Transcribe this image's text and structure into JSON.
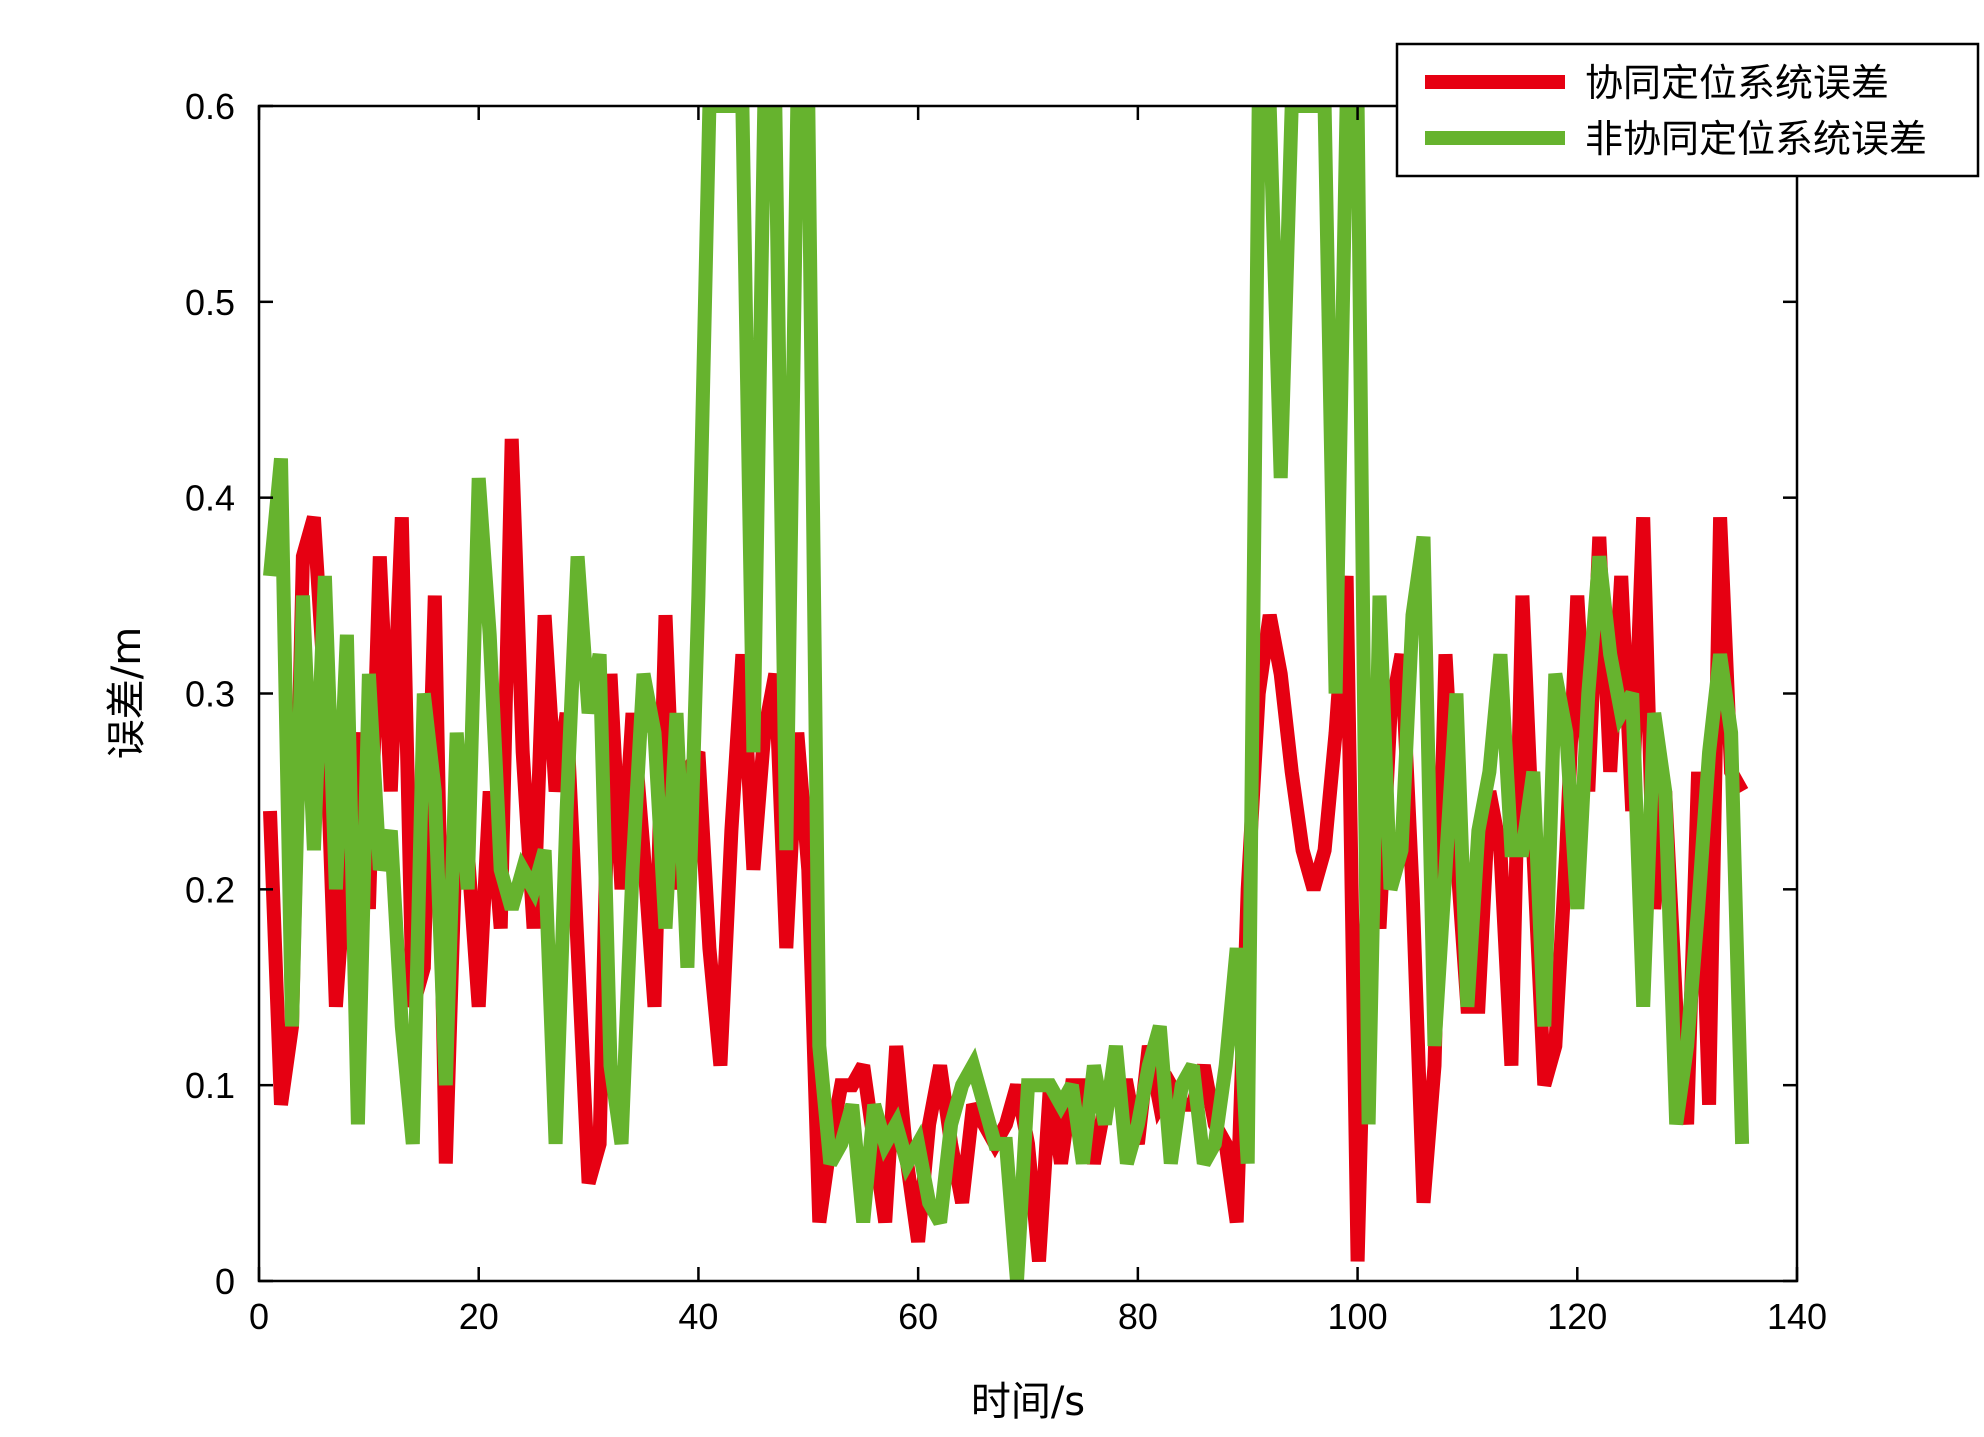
{
  "chart_data": {
    "type": "line",
    "xlabel": "时间/s",
    "ylabel": "误差/m",
    "xlim": [
      0,
      140
    ],
    "ylim": [
      0,
      0.6
    ],
    "xticks": [
      0,
      20,
      40,
      60,
      80,
      100,
      120,
      140
    ],
    "yticks": [
      0,
      0.1,
      0.2,
      0.3,
      0.4,
      0.5,
      0.6
    ],
    "xtick_labels": [
      "0",
      "20",
      "40",
      "60",
      "80",
      "100",
      "120",
      "140"
    ],
    "ytick_labels": [
      "0",
      "0.1",
      "0.2",
      "0.3",
      "0.4",
      "0.5",
      "0.6"
    ],
    "grid": false,
    "legend_position": "top-right",
    "series": [
      {
        "name": "协同定位系统误差",
        "color": "#e60012",
        "x": [
          1,
          2,
          3,
          4,
          5,
          6,
          7,
          8,
          9,
          10,
          11,
          12,
          13,
          14,
          15,
          16,
          17,
          18,
          19,
          20,
          21,
          22,
          23,
          24,
          25,
          26,
          27,
          28,
          29,
          30,
          31,
          32,
          33,
          34,
          35,
          36,
          37,
          38,
          39,
          40,
          41,
          42,
          43,
          44,
          45,
          46,
          47,
          48,
          49,
          50,
          51,
          52,
          53,
          54,
          55,
          56,
          57,
          58,
          59,
          60,
          61,
          62,
          63,
          64,
          65,
          66,
          67,
          68,
          69,
          70,
          71,
          72,
          73,
          74,
          75,
          76,
          77,
          78,
          79,
          80,
          81,
          82,
          83,
          84,
          85,
          86,
          87,
          88,
          89,
          90,
          91,
          92,
          93,
          94,
          95,
          96,
          97,
          98,
          99,
          100,
          101,
          102,
          103,
          104,
          105,
          106,
          107,
          108,
          109,
          110,
          111,
          112,
          113,
          114,
          115,
          116,
          117,
          118,
          119,
          120,
          121,
          122,
          123,
          124,
          125,
          126,
          127,
          128,
          129,
          130,
          131,
          132,
          133,
          134,
          135
        ],
        "values": [
          0.24,
          0.09,
          0.13,
          0.37,
          0.39,
          0.3,
          0.14,
          0.22,
          0.28,
          0.19,
          0.37,
          0.25,
          0.39,
          0.14,
          0.16,
          0.35,
          0.06,
          0.24,
          0.22,
          0.14,
          0.25,
          0.18,
          0.43,
          0.27,
          0.18,
          0.34,
          0.25,
          0.29,
          0.17,
          0.05,
          0.07,
          0.31,
          0.2,
          0.29,
          0.22,
          0.14,
          0.34,
          0.2,
          0.26,
          0.27,
          0.17,
          0.11,
          0.23,
          0.32,
          0.21,
          0.28,
          0.31,
          0.17,
          0.28,
          0.21,
          0.03,
          0.07,
          0.1,
          0.1,
          0.11,
          0.07,
          0.03,
          0.12,
          0.06,
          0.02,
          0.08,
          0.11,
          0.07,
          0.04,
          0.09,
          0.08,
          0.07,
          0.08,
          0.1,
          0.07,
          0.01,
          0.1,
          0.06,
          0.1,
          0.1,
          0.06,
          0.09,
          0.1,
          0.1,
          0.07,
          0.12,
          0.09,
          0.1,
          0.09,
          0.09,
          0.11,
          0.08,
          0.07,
          0.03,
          0.2,
          0.3,
          0.34,
          0.31,
          0.26,
          0.22,
          0.2,
          0.22,
          0.28,
          0.36,
          0.01,
          0.23,
          0.18,
          0.29,
          0.32,
          0.2,
          0.04,
          0.11,
          0.32,
          0.22,
          0.14,
          0.14,
          0.25,
          0.22,
          0.11,
          0.35,
          0.22,
          0.1,
          0.12,
          0.22,
          0.35,
          0.25,
          0.38,
          0.26,
          0.36,
          0.24,
          0.39,
          0.19,
          0.25,
          0.14,
          0.08,
          0.26,
          0.09,
          0.39,
          0.26,
          0.25
        ]
      },
      {
        "name": "非协同定位系统误差",
        "color": "#66b32e",
        "x": [
          1,
          2,
          3,
          4,
          5,
          6,
          7,
          8,
          9,
          10,
          11,
          12,
          13,
          14,
          15,
          16,
          17,
          18,
          19,
          20,
          21,
          22,
          23,
          24,
          25,
          26,
          27,
          28,
          29,
          30,
          31,
          32,
          33,
          34,
          35,
          36,
          37,
          38,
          39,
          40,
          41,
          42,
          43,
          44,
          45,
          46,
          47,
          48,
          49,
          50,
          51,
          52,
          53,
          54,
          55,
          56,
          57,
          58,
          59,
          60,
          61,
          62,
          63,
          64,
          65,
          66,
          67,
          68,
          69,
          70,
          71,
          72,
          73,
          74,
          75,
          76,
          77,
          78,
          79,
          80,
          81,
          82,
          83,
          84,
          85,
          86,
          87,
          88,
          89,
          90,
          91,
          92,
          93,
          94,
          95,
          96,
          97,
          98,
          99,
          100,
          101,
          102,
          103,
          104,
          105,
          106,
          107,
          108,
          109,
          110,
          111,
          112,
          113,
          114,
          115,
          116,
          117,
          118,
          119,
          120,
          121,
          122,
          123,
          124,
          125,
          126,
          127,
          128,
          129,
          130,
          131,
          132,
          133,
          134,
          135
        ],
        "values": [
          0.36,
          0.42,
          0.13,
          0.35,
          0.22,
          0.36,
          0.2,
          0.33,
          0.08,
          0.31,
          0.21,
          0.23,
          0.13,
          0.07,
          0.3,
          0.25,
          0.1,
          0.28,
          0.2,
          0.41,
          0.33,
          0.21,
          0.19,
          0.21,
          0.2,
          0.22,
          0.07,
          0.24,
          0.37,
          0.29,
          0.32,
          0.11,
          0.07,
          0.21,
          0.31,
          0.28,
          0.18,
          0.29,
          0.16,
          0.35,
          0.6,
          0.6,
          0.6,
          0.6,
          0.27,
          0.6,
          0.6,
          0.22,
          0.6,
          0.6,
          0.12,
          0.06,
          0.07,
          0.09,
          0.03,
          0.09,
          0.07,
          0.08,
          0.06,
          0.07,
          0.04,
          0.03,
          0.08,
          0.1,
          0.11,
          0.09,
          0.07,
          0.07,
          0.0,
          0.1,
          0.1,
          0.1,
          0.09,
          0.1,
          0.06,
          0.11,
          0.08,
          0.12,
          0.06,
          0.08,
          0.11,
          0.13,
          0.06,
          0.1,
          0.11,
          0.06,
          0.07,
          0.11,
          0.17,
          0.06,
          0.6,
          0.6,
          0.41,
          0.6,
          0.6,
          0.6,
          0.6,
          0.3,
          0.6,
          0.6,
          0.08,
          0.35,
          0.2,
          0.22,
          0.34,
          0.38,
          0.12,
          0.21,
          0.3,
          0.14,
          0.23,
          0.26,
          0.32,
          0.22,
          0.22,
          0.26,
          0.13,
          0.31,
          0.28,
          0.19,
          0.3,
          0.37,
          0.32,
          0.29,
          0.3,
          0.14,
          0.29,
          0.25,
          0.08,
          0.12,
          0.19,
          0.27,
          0.32,
          0.28,
          0.07
        ]
      }
    ]
  }
}
